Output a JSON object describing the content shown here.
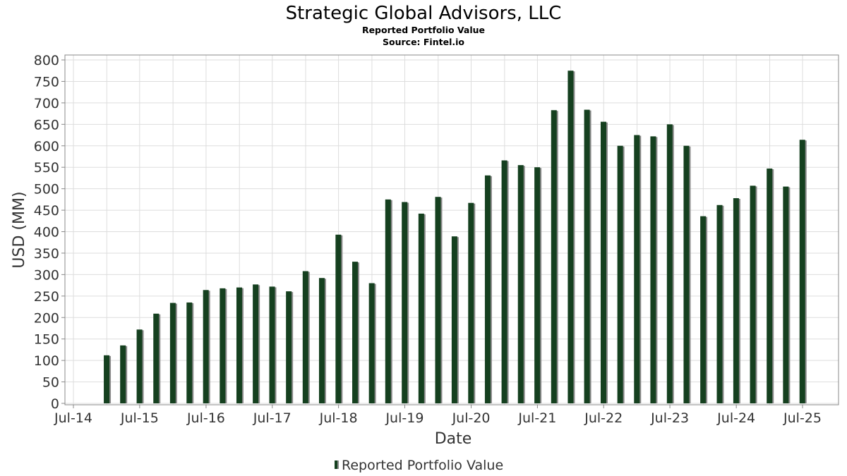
{
  "chart_data": {
    "type": "bar",
    "title": "Strategic Global Advisors, LLC",
    "subtitle": "Reported Portfolio Value",
    "source": "Source: Fintel.io",
    "xlabel": "Date",
    "ylabel": "USD (MM)",
    "ylim": [
      0,
      800
    ],
    "y_ticks": [
      0,
      50,
      100,
      150,
      200,
      250,
      300,
      350,
      400,
      450,
      500,
      550,
      600,
      650,
      700,
      750,
      800
    ],
    "x_ticks": [
      "Jul-14",
      "Jul-15",
      "Jul-16",
      "Jul-17",
      "Jul-18",
      "Jul-19",
      "Jul-20",
      "Jul-21",
      "Jul-22",
      "Jul-23",
      "Jul-24",
      "Jul-25"
    ],
    "grid": true,
    "legend_position": "bottom",
    "bar_color": "#15401f",
    "shadow_color": "#8a8a8a",
    "series": [
      {
        "name": "Reported Portfolio Value",
        "x": [
          "2014-12-31",
          "2015-03-31",
          "2015-06-30",
          "2015-09-30",
          "2015-12-31",
          "2016-03-31",
          "2016-06-30",
          "2016-09-30",
          "2016-12-31",
          "2017-03-31",
          "2017-06-30",
          "2017-09-30",
          "2017-12-31",
          "2018-03-31",
          "2018-06-30",
          "2018-09-30",
          "2018-12-31",
          "2019-03-31",
          "2019-06-30",
          "2019-09-30",
          "2019-12-31",
          "2020-03-31",
          "2020-06-30",
          "2020-09-30",
          "2020-12-31",
          "2021-03-31",
          "2021-06-30",
          "2021-09-30",
          "2021-12-31",
          "2022-03-31",
          "2022-06-30",
          "2022-09-30",
          "2022-12-31",
          "2023-03-31",
          "2023-06-30",
          "2023-09-30",
          "2023-12-31",
          "2024-03-31",
          "2024-06-30",
          "2024-09-30",
          "2024-12-31",
          "2025-03-31",
          "2025-06-30"
        ],
        "values": [
          112,
          135,
          172,
          209,
          234,
          235,
          264,
          268,
          270,
          277,
          272,
          261,
          308,
          292,
          393,
          330,
          280,
          475,
          469,
          442,
          481,
          389,
          467,
          531,
          566,
          555,
          550,
          683,
          775,
          684,
          656,
          600,
          625,
          622,
          650,
          600,
          436,
          462,
          478,
          507,
          547,
          505,
          614
        ]
      }
    ]
  }
}
